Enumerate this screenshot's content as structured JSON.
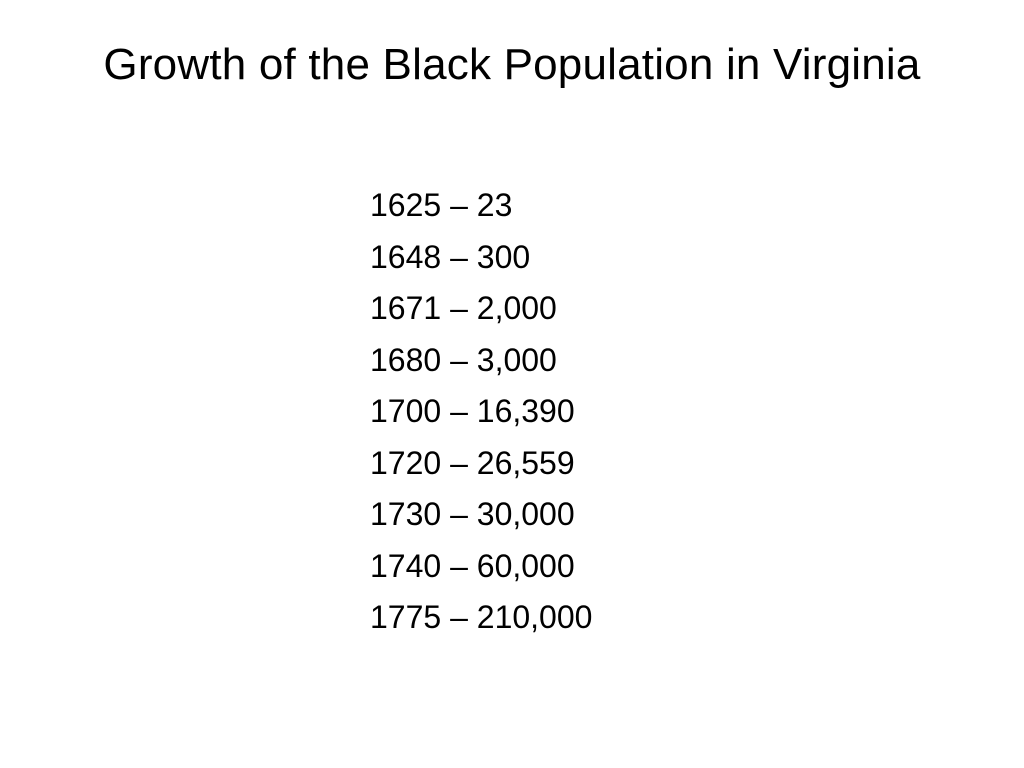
{
  "slide": {
    "title": "Growth of the Black Population in Virginia",
    "entries": [
      "1625 – 23",
      "1648 – 300",
      "1671 – 2,000",
      "1680 – 3,000",
      "1700 – 16,390",
      "1720 – 26,559",
      "1730 – 30,000",
      "1740 – 60,000",
      "1775 – 210,000"
    ]
  }
}
